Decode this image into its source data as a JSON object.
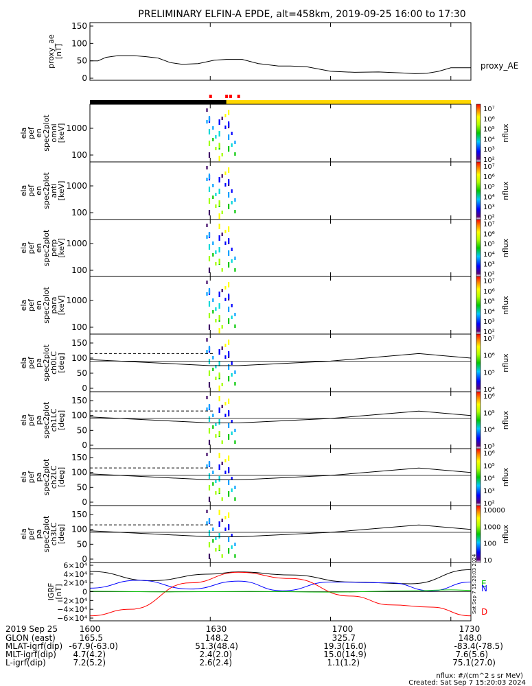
{
  "title": "PRELIMINARY ELFIN-A EPDE, alt=458km, 2019-09-25 16:00 to 17:30",
  "time_ticks": [
    "1600",
    "1630",
    "1700",
    "1730"
  ],
  "panels": [
    {
      "id": "proxy_ae",
      "ylabel": [
        "proxy_ae",
        "[nT]"
      ],
      "yticks": [
        "150",
        "100",
        "50",
        "0"
      ],
      "right_label": "proxy_AE"
    },
    {
      "id": "omni",
      "ylabel": [
        "ela",
        "pef",
        "en",
        "spec2plot",
        "omni",
        "[keV]"
      ],
      "yticks": [
        "1000",
        "100"
      ]
    },
    {
      "id": "anti",
      "ylabel": [
        "ela",
        "pef",
        "en",
        "spec2plot",
        "anti",
        "[keV]"
      ],
      "yticks": [
        "1000",
        "100"
      ]
    },
    {
      "id": "perp",
      "ylabel": [
        "ela",
        "pef",
        "en",
        "spec2plot",
        "perp",
        "[keV]"
      ],
      "yticks": [
        "1000",
        "100"
      ]
    },
    {
      "id": "para",
      "ylabel": [
        "ela",
        "pef",
        "en",
        "spec2plot",
        "para",
        "[keV]"
      ],
      "yticks": [
        "1000",
        "100"
      ]
    },
    {
      "id": "ch0LC",
      "ylabel": [
        "ela",
        "pef",
        "pa",
        "spec2plot",
        "ch0LC",
        "[deg]"
      ],
      "yticks": [
        "150",
        "100",
        "50",
        "0"
      ]
    },
    {
      "id": "ch1LC",
      "ylabel": [
        "ela",
        "pef",
        "pa",
        "spec2plot",
        "ch1LC",
        "[deg]"
      ],
      "yticks": [
        "150",
        "100",
        "50",
        "0"
      ]
    },
    {
      "id": "ch2LC",
      "ylabel": [
        "ela",
        "pef",
        "pa",
        "spec2plot",
        "ch2LC",
        "[deg]"
      ],
      "yticks": [
        "150",
        "100",
        "50",
        "0"
      ]
    },
    {
      "id": "ch3LC",
      "ylabel": [
        "ela",
        "pef",
        "pa",
        "spec2plot",
        "ch3LC",
        "[deg]"
      ],
      "yticks": [
        "150",
        "100",
        "50",
        "0"
      ]
    },
    {
      "id": "igrf",
      "ylabel": [
        "IGRF",
        "[nT]"
      ],
      "yticks": [
        "6×10⁴",
        "4×10⁴",
        "2×10⁴",
        "0",
        "−2×10⁴",
        "−4×10⁴",
        "−6×10⁴"
      ],
      "side_letters": [
        "E",
        "N",
        "D"
      ]
    }
  ],
  "colorbars": [
    {
      "label": "nflux",
      "ticks": [
        "10⁷",
        "10⁶",
        "10⁵",
        "10⁴",
        "10³",
        "10²"
      ]
    },
    {
      "label": "nflux",
      "ticks": [
        "10⁷",
        "10⁶",
        "10⁵",
        "10⁴",
        "10³",
        "10²"
      ]
    },
    {
      "label": "nflux",
      "ticks": [
        "10⁷",
        "10⁶",
        "10⁵",
        "10⁴",
        "10³",
        "10²"
      ]
    },
    {
      "label": "nflux",
      "ticks": [
        "10⁷",
        "10⁶",
        "10⁵",
        "10⁴",
        "10³",
        "10²"
      ]
    },
    {
      "label": "nflux",
      "ticks": [
        "10⁷",
        "10⁶",
        "10⁵",
        "10⁴"
      ]
    },
    {
      "label": "nflux",
      "ticks": [
        "10⁶",
        "10⁵",
        "10⁴",
        "10³"
      ]
    },
    {
      "label": "nflux",
      "ticks": [
        "10⁶",
        "10⁵",
        "10⁴",
        "10³",
        "10²"
      ]
    },
    {
      "label": "nflux",
      "ticks": [
        "10000",
        "1000",
        "100",
        "10"
      ]
    }
  ],
  "footer": {
    "rows": [
      {
        "label": "2019 Sep 25",
        "values": [
          "1600",
          "1630",
          "1700",
          "1730"
        ]
      },
      {
        "label": "GLON (east)",
        "values": [
          "165.5",
          "148.2",
          "325.7",
          "148.0"
        ]
      },
      {
        "label": "MLAT-igrf(dip)",
        "values": [
          "-67.9(-63.0)",
          "51.3(48.4)",
          "19.3(16.0)",
          "-83.4(-78.5)"
        ]
      },
      {
        "label": "MLT-igrf(dip)",
        "values": [
          "4.7(4.2)",
          "2.4(2.0)",
          "15.0(14.9)",
          "7.6(5.6)"
        ]
      },
      {
        "label": "L-igrf(dip)",
        "values": [
          "7.2(5.2)",
          "2.6(2.4)",
          "1.1(1.2)",
          "75.1(27.0)"
        ]
      }
    ],
    "units_note": "nflux: #/(cm^2 s sr MeV)",
    "created": "Created: Sat Sep  7 15:20:03 2024",
    "side_stamp": "Sat Sep  7 15:20:03 2024"
  },
  "colors": {
    "axis": "#000000",
    "igrf_e": "#000000",
    "igrf_n": "#0000ff",
    "igrf_d": "#ff0000",
    "igrf_extra": "#00c000",
    "bar_dark": "#000000",
    "bar_sun": "#ffd700",
    "marker": "#ff0000"
  },
  "chart_data": {
    "type": "line",
    "x_range": [
      "16:00",
      "17:35"
    ],
    "series": [
      {
        "name": "proxy_AE",
        "unit": "nT",
        "x": [
          "16:00",
          "16:02",
          "16:04",
          "16:07",
          "16:11",
          "16:14",
          "16:17",
          "16:20",
          "16:23",
          "16:27",
          "16:31",
          "16:34",
          "16:38",
          "16:42",
          "16:47",
          "16:50",
          "16:54",
          "17:00",
          "17:06",
          "17:12",
          "17:18",
          "17:21",
          "17:24",
          "17:27",
          "17:30",
          "17:35"
        ],
        "y": [
          50,
          50,
          60,
          65,
          65,
          62,
          58,
          45,
          40,
          42,
          52,
          54,
          54,
          42,
          35,
          35,
          33,
          20,
          17,
          18,
          15,
          13,
          14,
          20,
          30,
          30
        ]
      },
      {
        "name": "E",
        "unit": "nT",
        "x": [
          "16:00",
          "16:15",
          "16:30",
          "16:37",
          "16:50",
          "17:05",
          "17:20",
          "17:35"
        ],
        "y": [
          46000,
          25000,
          40000,
          45000,
          38000,
          22000,
          18000,
          50000
        ]
      },
      {
        "name": "N",
        "unit": "nT",
        "x": [
          "16:00",
          "16:12",
          "16:25",
          "16:37",
          "16:48",
          "17:00",
          "17:15",
          "17:25",
          "17:35"
        ],
        "y": [
          8000,
          26000,
          6000,
          24000,
          2000,
          22000,
          20000,
          2000,
          22000
        ]
      },
      {
        "name": "D",
        "unit": "nT",
        "x": [
          "16:00",
          "16:10",
          "16:25",
          "16:37",
          "16:50",
          "17:05",
          "17:15",
          "17:25",
          "17:35"
        ],
        "y": [
          -55000,
          -40000,
          20000,
          44000,
          30000,
          -10000,
          -30000,
          -35000,
          -55000
        ]
      },
      {
        "name": "",
        "unit": "nT",
        "x": [
          "16:00",
          "16:20",
          "16:40",
          "17:00",
          "17:20",
          "17:30",
          "17:35"
        ],
        "y": [
          1000,
          -500,
          500,
          -1000,
          2000,
          4000,
          3000
        ]
      }
    ],
    "loss_cone_deg": {
      "solid_x": [
        "16:00",
        "16:30",
        "16:37",
        "17:00",
        "17:22",
        "17:35"
      ],
      "solid_y": [
        95,
        75,
        75,
        90,
        115,
        100
      ],
      "dashed_x": [
        "16:00",
        "16:31"
      ],
      "dashed_y": [
        115,
        115
      ]
    },
    "spectrogram": {
      "active_window": [
        "16:29",
        "16:37"
      ],
      "flux_range": [
        "10²",
        "10⁷"
      ],
      "energy_range_keV": [
        60,
        7000
      ],
      "pitch_angle_range_deg": [
        0,
        180
      ]
    },
    "grid": false,
    "legend": "right"
  }
}
